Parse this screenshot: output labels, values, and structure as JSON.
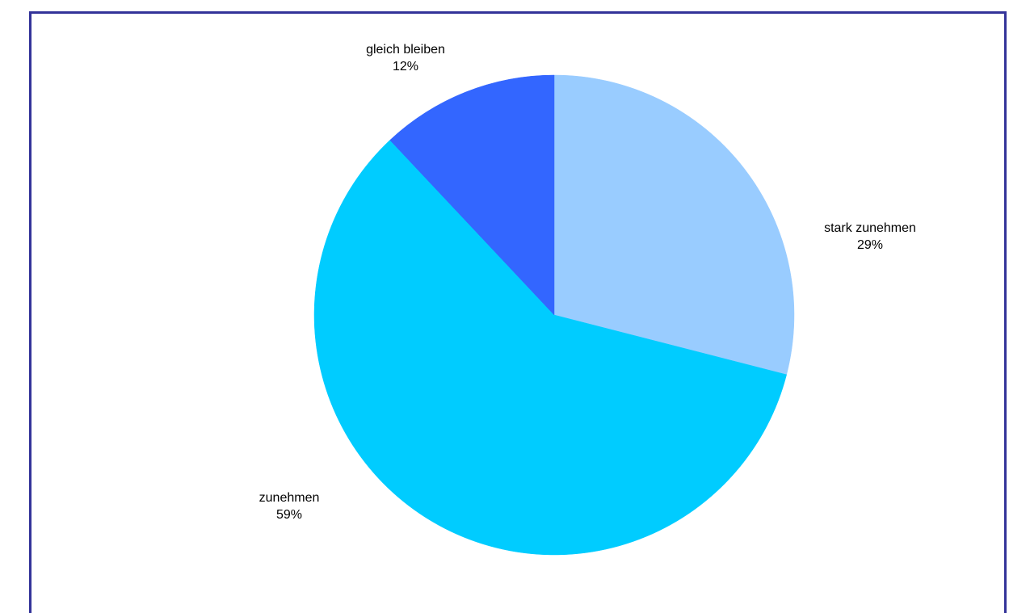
{
  "chart_data": {
    "type": "pie",
    "title": "",
    "start": "12 o'clock",
    "direction": "clockwise",
    "slices": [
      {
        "label": "stark zunehmen",
        "value": 29,
        "value_label": "29%",
        "color": "#99ccff"
      },
      {
        "label": "zunehmen",
        "value": 59,
        "value_label": "59%",
        "color": "#00ccff"
      },
      {
        "label": "gleich bleiben",
        "value": 12,
        "value_label": "12%",
        "color": "#3366ff"
      }
    ],
    "legend": "none",
    "frame_color": "#333399"
  }
}
